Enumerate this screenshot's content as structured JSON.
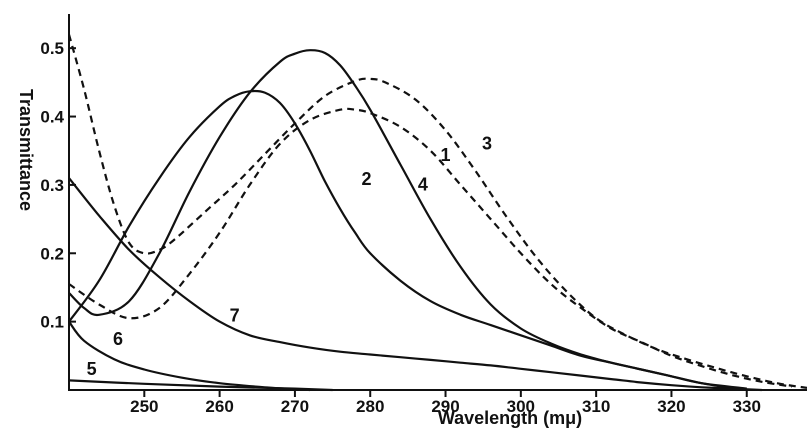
{
  "chart_data": {
    "type": "line",
    "title": "",
    "xlabel": "Wavelength (mμ)",
    "ylabel": "Transmittance",
    "xlim": [
      240,
      338
    ],
    "ylim": [
      0,
      0.55
    ],
    "x_ticks": [
      250,
      260,
      270,
      280,
      290,
      300,
      310,
      320,
      330
    ],
    "x_tick_labels": [
      "250",
      "260",
      "270",
      "280",
      "290",
      "300",
      "310",
      "320",
      "330"
    ],
    "y_ticks": [
      0.1,
      0.2,
      0.3,
      0.4,
      0.5
    ],
    "y_tick_labels": [
      "0.1",
      "0.2",
      "0.3",
      "0.4",
      "0.5"
    ],
    "grid": false,
    "series": [
      {
        "name": "1",
        "style": "dashed",
        "x": [
          240,
          244,
          248,
          252,
          256,
          260,
          264,
          268,
          272,
          276,
          278,
          280,
          284,
          288,
          292,
          296,
          300,
          304,
          308,
          312,
          316,
          320,
          324,
          328,
          332,
          336
        ],
        "y": [
          0.155,
          0.125,
          0.105,
          0.12,
          0.17,
          0.23,
          0.3,
          0.36,
          0.395,
          0.41,
          0.41,
          0.405,
          0.385,
          0.35,
          0.3,
          0.25,
          0.2,
          0.155,
          0.12,
          0.09,
          0.07,
          0.05,
          0.035,
          0.022,
          0.012,
          0.005
        ]
      },
      {
        "name": "2",
        "style": "solid",
        "x": [
          240,
          244,
          248,
          252,
          256,
          260,
          262,
          264,
          266,
          268,
          270,
          272,
          274,
          276,
          278,
          280,
          284,
          288,
          292,
          296,
          300,
          304,
          308,
          312,
          316,
          320,
          324,
          328
        ],
        "y": [
          0.1,
          0.16,
          0.24,
          0.31,
          0.37,
          0.415,
          0.43,
          0.437,
          0.435,
          0.42,
          0.39,
          0.35,
          0.305,
          0.265,
          0.23,
          0.2,
          0.16,
          0.13,
          0.11,
          0.095,
          0.08,
          0.065,
          0.05,
          0.04,
          0.03,
          0.02,
          0.01,
          0.003
        ]
      },
      {
        "name": "3",
        "style": "dashed",
        "x": [
          240,
          242,
          244,
          246,
          248,
          250,
          252,
          254,
          258,
          262,
          266,
          270,
          274,
          278,
          280,
          282,
          286,
          290,
          294,
          298,
          302,
          306,
          310,
          314,
          318,
          322,
          326,
          330,
          334,
          338
        ],
        "y": [
          0.52,
          0.44,
          0.35,
          0.27,
          0.215,
          0.2,
          0.205,
          0.22,
          0.26,
          0.3,
          0.345,
          0.39,
          0.43,
          0.452,
          0.455,
          0.45,
          0.425,
          0.38,
          0.32,
          0.255,
          0.195,
          0.145,
          0.105,
          0.08,
          0.06,
          0.045,
          0.032,
          0.02,
          0.01,
          0.003
        ]
      },
      {
        "name": "4",
        "style": "solid",
        "x": [
          240,
          242,
          244,
          248,
          252,
          256,
          260,
          264,
          268,
          270,
          272,
          274,
          276,
          278,
          280,
          284,
          288,
          292,
          296,
          300,
          304,
          308,
          312,
          316,
          320,
          324,
          330
        ],
        "y": [
          0.142,
          0.12,
          0.11,
          0.13,
          0.2,
          0.29,
          0.37,
          0.435,
          0.48,
          0.492,
          0.497,
          0.493,
          0.475,
          0.445,
          0.41,
          0.33,
          0.25,
          0.18,
          0.125,
          0.09,
          0.068,
          0.052,
          0.04,
          0.03,
          0.02,
          0.01,
          0.002
        ]
      },
      {
        "name": "5",
        "style": "solid",
        "x": [
          240,
          250,
          260,
          270,
          275
        ],
        "y": [
          0.014,
          0.009,
          0.005,
          0.002,
          0.0
        ]
      },
      {
        "name": "6",
        "style": "solid",
        "x": [
          240,
          242,
          246,
          250,
          255,
          260,
          266,
          272
        ],
        "y": [
          0.1,
          0.072,
          0.045,
          0.03,
          0.018,
          0.01,
          0.004,
          0.0
        ]
      },
      {
        "name": "7",
        "style": "solid",
        "x": [
          240,
          244,
          248,
          252,
          256,
          260,
          264,
          268,
          272,
          276,
          280,
          284,
          288,
          292,
          296,
          300,
          304,
          308,
          312,
          316,
          320,
          324,
          328,
          332
        ],
        "y": [
          0.31,
          0.255,
          0.205,
          0.165,
          0.13,
          0.1,
          0.08,
          0.07,
          0.062,
          0.056,
          0.052,
          0.048,
          0.044,
          0.04,
          0.036,
          0.031,
          0.026,
          0.021,
          0.016,
          0.011,
          0.007,
          0.004,
          0.002,
          0.0
        ]
      }
    ],
    "labels": [
      {
        "text": "1",
        "x": 290,
        "y": 0.335
      },
      {
        "text": "2",
        "x": 279.5,
        "y": 0.3
      },
      {
        "text": "3",
        "x": 295.5,
        "y": 0.352
      },
      {
        "text": "4",
        "x": 287,
        "y": 0.292
      },
      {
        "text": "5",
        "x": 243,
        "y": 0.022
      },
      {
        "text": "6",
        "x": 246.5,
        "y": 0.066
      },
      {
        "text": "7",
        "x": 262,
        "y": 0.1
      }
    ]
  }
}
